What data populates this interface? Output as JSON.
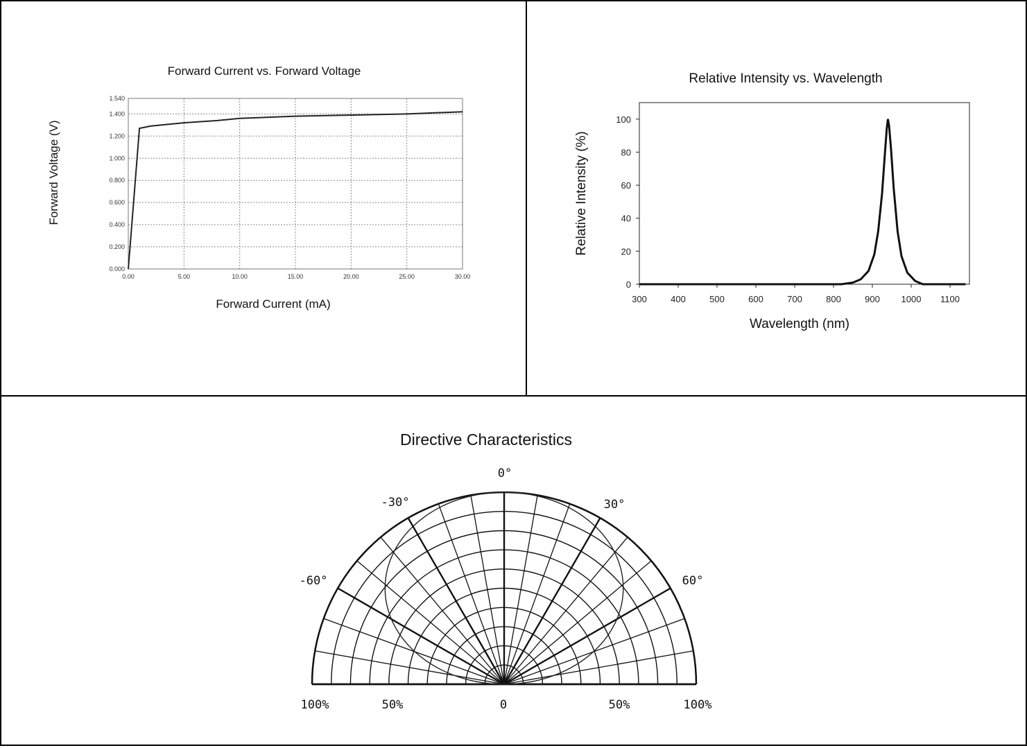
{
  "chart_data": [
    {
      "type": "line",
      "title": "Forward Current vs. Forward Voltage",
      "xlabel": "Forward Current (mA)",
      "ylabel": "Forward Voltage (V)",
      "xlim": [
        0,
        30
      ],
      "ylim": [
        0,
        1.54
      ],
      "x_ticks": [
        "0.00",
        "5.00",
        "10.00",
        "15.00",
        "20.00",
        "25.00",
        "30.00"
      ],
      "y_ticks": [
        "0.000",
        "0.200",
        "0.400",
        "0.600",
        "0.800",
        "1.000",
        "1.200",
        "1.400",
        "1.540"
      ],
      "y_tick_values": [
        0,
        0.2,
        0.4,
        0.6,
        0.8,
        1.0,
        1.2,
        1.4,
        1.54
      ],
      "grid": true,
      "series": [
        {
          "x": [
            0,
            1,
            2,
            5,
            8,
            10,
            15,
            20,
            25,
            30
          ],
          "y": [
            0,
            1.27,
            1.29,
            1.32,
            1.34,
            1.36,
            1.38,
            1.39,
            1.4,
            1.42
          ]
        }
      ]
    },
    {
      "type": "line",
      "title": "Relative Intensity vs. Wavelength",
      "xlabel": "Wavelength (nm)",
      "ylabel": "Relative Intensity (%)",
      "xlim": [
        300,
        1150
      ],
      "ylim": [
        0,
        110
      ],
      "x_ticks": [
        "300",
        "400",
        "500",
        "600",
        "700",
        "800",
        "900",
        "1000",
        "1100"
      ],
      "y_ticks": [
        "0",
        "20",
        "40",
        "60",
        "80",
        "100"
      ],
      "grid": false,
      "series": [
        {
          "x": [
            300,
            820,
            850,
            870,
            890,
            905,
            915,
            925,
            932,
            937,
            940,
            943,
            948,
            955,
            965,
            975,
            990,
            1010,
            1030,
            1140
          ],
          "y": [
            0,
            0,
            1,
            3,
            8,
            18,
            32,
            55,
            78,
            94,
            100,
            96,
            82,
            58,
            32,
            17,
            7,
            2,
            0,
            0
          ]
        }
      ]
    },
    {
      "type": "polar",
      "title": "Directive Characteristics",
      "angle_labels": [
        "0°",
        "-30°",
        "30°",
        "-60°",
        "60°"
      ],
      "radius_labels": [
        "100%",
        "50%",
        "0",
        "50%",
        "100%"
      ],
      "angle_range_deg": [
        -90,
        90
      ],
      "radius_range": [
        0,
        100
      ]
    }
  ]
}
